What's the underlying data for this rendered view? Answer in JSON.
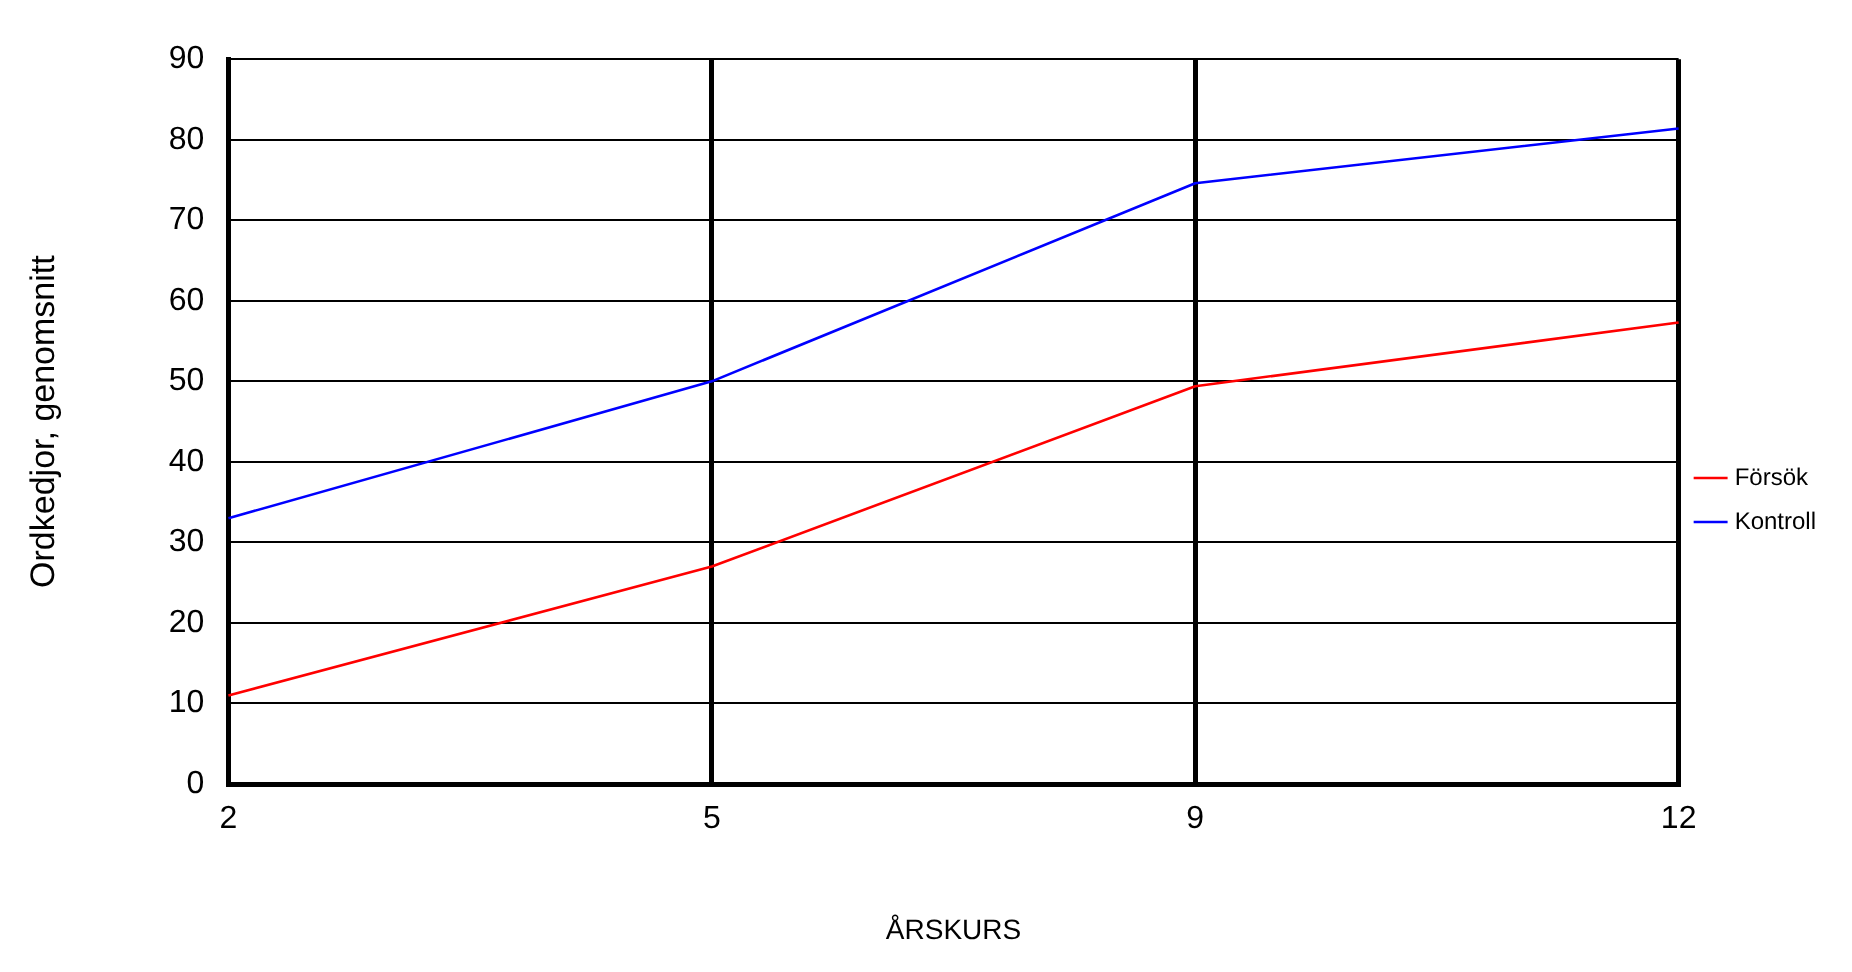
{
  "chart_data": {
    "type": "line",
    "xlabel": "ÅRSKURS",
    "ylabel": "Ordkedjor, genomsnitt",
    "categories": [
      "2",
      "5",
      "9",
      "12"
    ],
    "series": [
      {
        "name": "Försök",
        "color": "#ff0000",
        "values": [
          11,
          27,
          49.4,
          57.3
        ]
      },
      {
        "name": "Kontroll",
        "color": "#0000ff",
        "values": [
          33,
          50,
          74.6,
          81.4
        ]
      }
    ],
    "ylim": [
      0,
      90
    ],
    "yticks": [
      0,
      10,
      20,
      30,
      40,
      50,
      60,
      70,
      80,
      90
    ],
    "grid": true,
    "legend": "right",
    "marker": "none",
    "line_style": "solid"
  }
}
